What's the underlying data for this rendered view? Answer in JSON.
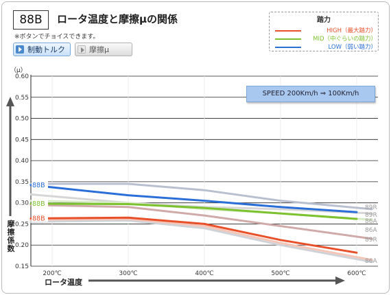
{
  "header": {
    "code": "88B",
    "title": "ロータ温度と摩擦μの関係",
    "note": "※ボタンでチョイスできます。"
  },
  "buttons": {
    "torque_label": "制動トルク",
    "mu_label": "摩擦μ"
  },
  "legend": {
    "title": "踏力",
    "items": [
      {
        "label": "HIGH（最大踏力）",
        "color": "#e8502a"
      },
      {
        "label": "MID（中ぐらいの踏力）",
        "color": "#7cc22f"
      },
      {
        "label": "LOW（弱い踏力）",
        "color": "#2a6ed8"
      }
    ]
  },
  "speed_label": "SPEED 200Km/h ⇒ 100Km/h",
  "axis": {
    "unit": "（μ）",
    "ylabel": "摩擦係数",
    "xlabel": "ロータ温度"
  },
  "chart_data": {
    "type": "line",
    "title": "ロータ温度と摩擦μの関係",
    "xlabel": "ロータ温度",
    "ylabel": "摩擦係数",
    "x": [
      200,
      300,
      400,
      500,
      600
    ],
    "x_ticks": [
      "200℃",
      "300℃",
      "400℃",
      "500℃",
      "600℃"
    ],
    "xlim": [
      172,
      628
    ],
    "ylim": [
      0.15,
      0.6
    ],
    "y_ticks": [
      "0.15",
      "0.20",
      "0.25",
      "0.30",
      "0.35",
      "0.40",
      "0.45",
      "0.50",
      "0.55",
      "0.60"
    ],
    "grid": "horizontal",
    "series": [
      {
        "name": "89R",
        "color": "#b8c0d0",
        "width": 3,
        "points": [
          [
            172,
            0.345
          ],
          [
            300,
            0.345
          ],
          [
            400,
            0.33
          ],
          [
            500,
            0.305
          ],
          [
            620,
            0.285
          ]
        ],
        "end_label": "89R"
      },
      {
        "name": "89R",
        "color": "#d6d6d6",
        "width": 3,
        "points": [
          [
            172,
            0.32
          ],
          [
            300,
            0.3
          ],
          [
            400,
            0.29
          ],
          [
            500,
            0.285
          ],
          [
            620,
            0.275
          ]
        ],
        "end_label": "89R"
      },
      {
        "name": "86A",
        "color": "#d9ecc8",
        "width": 3,
        "points": [
          [
            172,
            0.305
          ],
          [
            300,
            0.3
          ],
          [
            400,
            0.285
          ],
          [
            500,
            0.275
          ],
          [
            620,
            0.26
          ]
        ],
        "end_label": "86A"
      },
      {
        "name": "86A",
        "color": "#d0aaa8",
        "width": 3,
        "points": [
          [
            172,
            0.295
          ],
          [
            300,
            0.29
          ],
          [
            400,
            0.27
          ],
          [
            500,
            0.245
          ],
          [
            620,
            0.215
          ]
        ],
        "end_label": "86A"
      },
      {
        "name": "89R",
        "color": "#cfd3d8",
        "width": 3,
        "points": [
          [
            172,
            0.255
          ],
          [
            300,
            0.258
          ],
          [
            400,
            0.24
          ],
          [
            500,
            0.2
          ],
          [
            620,
            0.16
          ]
        ],
        "end_label": "89R"
      },
      {
        "name": "86A",
        "color": "#f5c5b8",
        "width": 3,
        "points": [
          [
            172,
            0.26
          ],
          [
            300,
            0.262
          ],
          [
            400,
            0.245
          ],
          [
            500,
            0.205
          ],
          [
            620,
            0.165
          ]
        ],
        "end_label": "86A"
      },
      {
        "name": "88B",
        "color": "#2a6ed8",
        "width": 3,
        "points": [
          [
            172,
            0.342
          ],
          [
            300,
            0.318
          ],
          [
            400,
            0.305
          ],
          [
            500,
            0.29
          ],
          [
            600,
            0.278
          ]
        ],
        "start_label": "88B"
      },
      {
        "name": "88B",
        "color": "#7cc22f",
        "width": 3,
        "points": [
          [
            172,
            0.298
          ],
          [
            300,
            0.297
          ],
          [
            400,
            0.288
          ],
          [
            500,
            0.275
          ],
          [
            600,
            0.262
          ]
        ],
        "start_label": "88B"
      },
      {
        "name": "88B",
        "color": "#e8502a",
        "width": 3,
        "points": [
          [
            172,
            0.263
          ],
          [
            300,
            0.265
          ],
          [
            400,
            0.25
          ],
          [
            500,
            0.212
          ],
          [
            600,
            0.182
          ]
        ],
        "start_label": "88B"
      }
    ]
  }
}
